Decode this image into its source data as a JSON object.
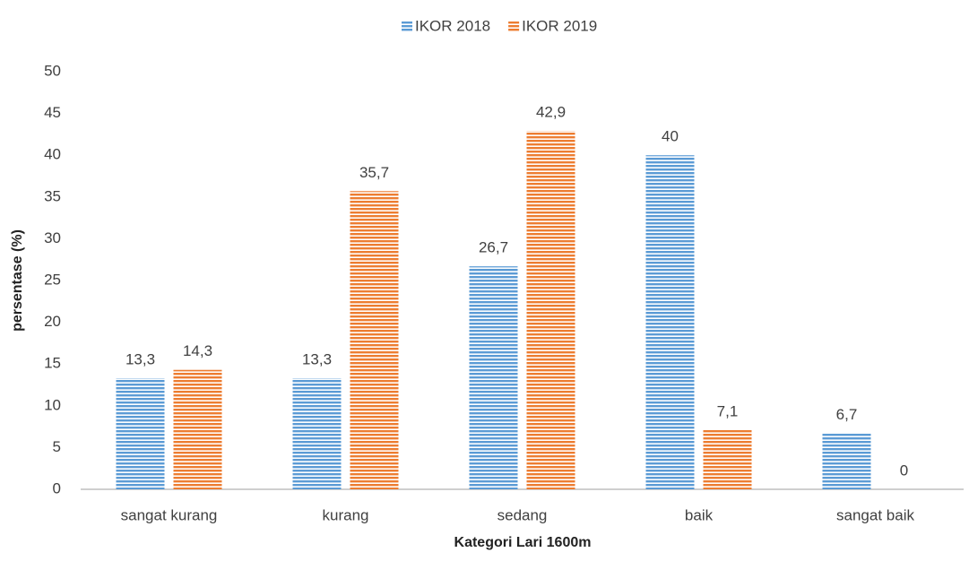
{
  "chart_data": {
    "type": "bar",
    "x_label": "Kategori Lari 1600m",
    "y_label": "persentase (%)",
    "categories": [
      "sangat kurang",
      "kurang",
      "sedang",
      "baik",
      "sangat baik"
    ],
    "series": [
      {
        "name": "IKOR 2018",
        "color": "#5b9bd5",
        "values": [
          13.3,
          13.3,
          26.7,
          40,
          6.7
        ],
        "value_labels": [
          "13,3",
          "13,3",
          "26,7",
          "40",
          "6,7"
        ]
      },
      {
        "name": "IKOR 2019",
        "color": "#ed7d31",
        "values": [
          14.3,
          35.7,
          42.9,
          7.1,
          0
        ],
        "value_labels": [
          "14,3",
          "35,7",
          "42,9",
          "7,1",
          "0"
        ]
      }
    ],
    "ylim": [
      0,
      50
    ],
    "yticks": [
      0,
      5,
      10,
      15,
      20,
      25,
      30,
      35,
      40,
      45,
      50
    ],
    "legend": "top",
    "grid": false
  }
}
